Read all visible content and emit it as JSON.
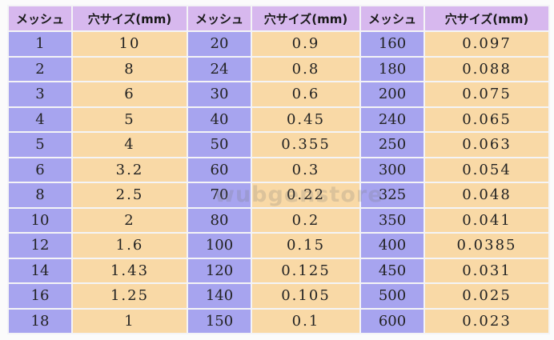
{
  "headers": [
    "メッシュ",
    "穴サイズ(mm)",
    "メッシュ",
    "穴サイズ(mm)",
    "メッシュ",
    "穴サイズ(mm)"
  ],
  "rows": [
    [
      "1",
      "10",
      "20",
      "0.9",
      "160",
      "0.097"
    ],
    [
      "2",
      "8",
      "24",
      "0.8",
      "180",
      "0.088"
    ],
    [
      "3",
      "6",
      "30",
      "0.6",
      "200",
      "0.075"
    ],
    [
      "4",
      "5",
      "40",
      "0.45",
      "240",
      "0.065"
    ],
    [
      "5",
      "4",
      "50",
      "0.355",
      "250",
      "0.063"
    ],
    [
      "6",
      "3.2",
      "60",
      "0.3",
      "300",
      "0.054"
    ],
    [
      "8",
      "2.5",
      "70",
      "0.22",
      "325",
      "0.048"
    ],
    [
      "10",
      "2",
      "80",
      "0.2",
      "350",
      "0.041"
    ],
    [
      "12",
      "1.6",
      "100",
      "0.15",
      "400",
      "0.0385"
    ],
    [
      "14",
      "1.43",
      "120",
      "0.125",
      "450",
      "0.031"
    ],
    [
      "16",
      "1.25",
      "140",
      "0.105",
      "500",
      "0.025"
    ],
    [
      "18",
      "1",
      "150",
      "0.1",
      "600",
      "0.023"
    ]
  ],
  "watermark": "wubgenstore",
  "colors": {
    "header_bg": "#d7b8ee",
    "mesh_bg": "#a7a4ef",
    "size_bg": "#f9d9a6",
    "grid_line": "#f4f4f6"
  }
}
